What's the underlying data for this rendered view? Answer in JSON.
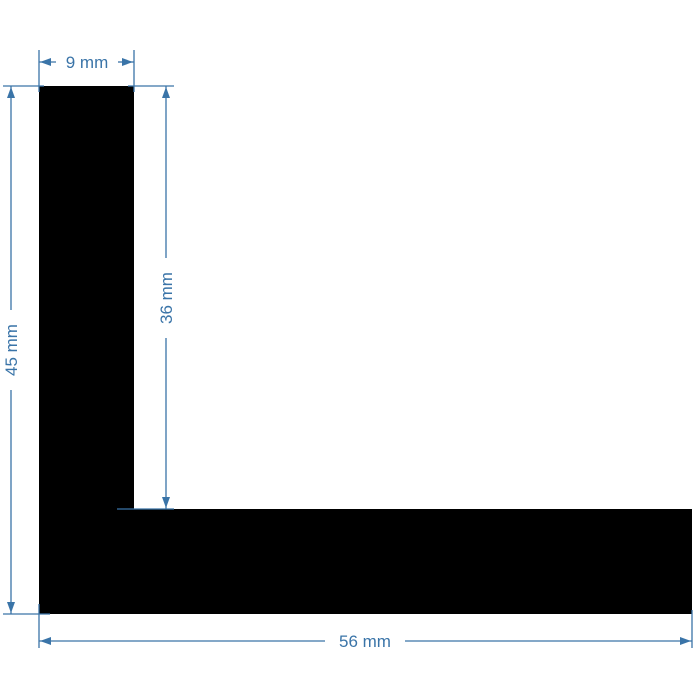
{
  "drawing": {
    "shape": "L-profile",
    "fill_color": "#000000",
    "dimension_color": "#3a74a8",
    "dimensions": {
      "flange_thickness": {
        "value": 9,
        "label": "9 mm"
      },
      "total_height": {
        "value": 45,
        "label": "45 mm"
      },
      "inner_height": {
        "value": 36,
        "label": "36 mm"
      },
      "total_width": {
        "value": 56,
        "label": "56 mm"
      }
    }
  }
}
